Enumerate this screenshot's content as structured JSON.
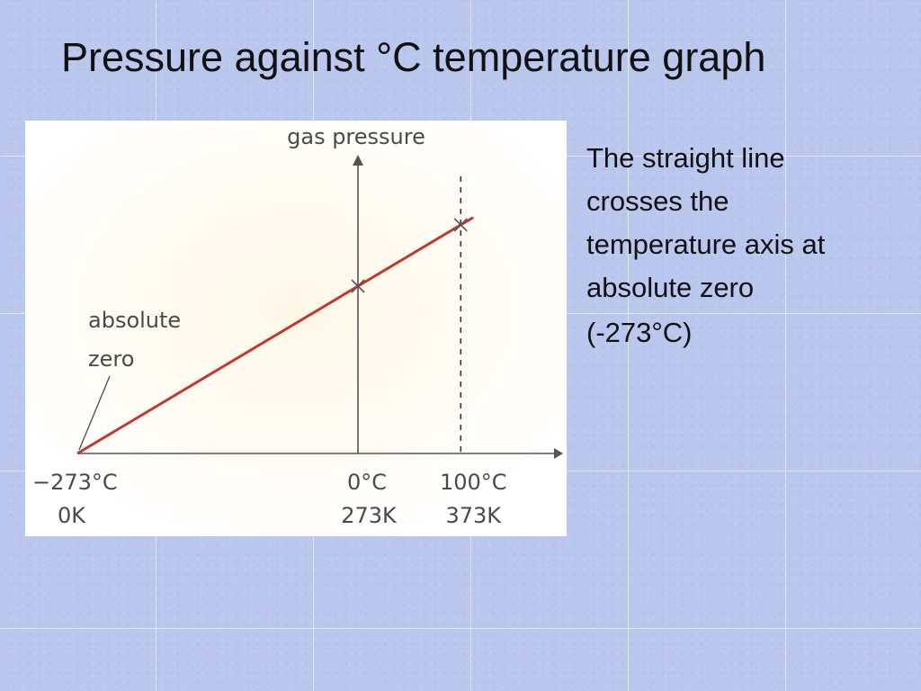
{
  "slide": {
    "title": "Pressure against °C temperature graph",
    "caption": "The straight line crosses the temperature axis at absolute zero",
    "caption_value": "(-273°C)"
  },
  "colors": {
    "line": "#c0392b",
    "axis": "#555555",
    "label": "#4a4a4a"
  },
  "chart_data": {
    "type": "line",
    "title": "",
    "ylabel": "gas pressure",
    "xlim": [
      -273,
      100
    ],
    "series": [
      {
        "x": [
          -273,
          100
        ],
        "y": [
          0,
          1.366
        ]
      }
    ],
    "markers": [
      {
        "x": 0,
        "y": 1.0
      },
      {
        "x": 100,
        "y": 1.366
      }
    ],
    "reference_lines": [
      {
        "x": 100,
        "style": "dashed"
      }
    ],
    "ticks": [
      {
        "x": -273,
        "celsius": "−273°C",
        "kelvin": "0K"
      },
      {
        "x": 0,
        "celsius": "0°C",
        "kelvin": "273K"
      },
      {
        "x": 100,
        "celsius": "100°C",
        "kelvin": "373K"
      }
    ],
    "annotation": {
      "text_lines": [
        "absolute",
        "zero"
      ],
      "x": -273,
      "y": 0
    }
  }
}
